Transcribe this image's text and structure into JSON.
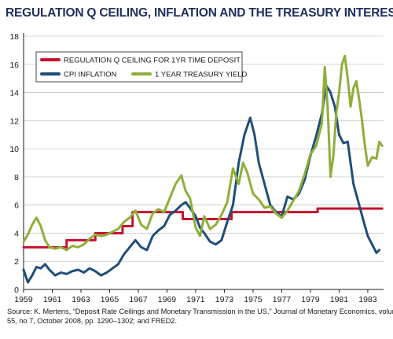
{
  "chart_data": {
    "type": "line",
    "title": "REGULATION Q CEILING, INFLATION AND THE TREASURY INTEREST RATE",
    "xlabel": "",
    "ylabel": "",
    "xlim": [
      1959,
      1984.1
    ],
    "ylim": [
      0,
      18
    ],
    "x_ticks": [
      1959,
      1961,
      1963,
      1965,
      1967,
      1969,
      1971,
      1973,
      1975,
      1977,
      1979,
      1981,
      1983
    ],
    "y_ticks": [
      0,
      2,
      4,
      6,
      8,
      10,
      12,
      14,
      16,
      18
    ],
    "grid": "horizontal",
    "legend_position": "top-left",
    "source": [
      "Source: K. Mertens, “Deposit Rate Ceilings and Monetary Transmission in the US,” Journal of Monetary Economics, volume",
      "55, no 7, October 2008, pp. 1290–1302; and FRED2."
    ],
    "series": [
      {
        "name": "REGULATION Q CEILING FOR 1YR TIME DEPOSIT",
        "color": "#c8102e",
        "step": true,
        "x": [
          1959,
          1962,
          1964,
          1965.9,
          1966.6,
          1970.1,
          1973.5,
          1979.5,
          1984
        ],
        "y": [
          3.0,
          3.5,
          4.0,
          4.5,
          5.5,
          5.0,
          5.5,
          5.75,
          5.75
        ]
      },
      {
        "name": "CPI INFLATION",
        "color": "#1f4e79",
        "step": false,
        "x": [
          1959.0,
          1959.3,
          1959.6,
          1959.9,
          1960.2,
          1960.5,
          1960.8,
          1961.2,
          1961.6,
          1962.0,
          1962.4,
          1962.8,
          1963.2,
          1963.6,
          1964.0,
          1964.4,
          1964.8,
          1965.2,
          1965.6,
          1966.0,
          1966.4,
          1966.8,
          1967.2,
          1967.6,
          1968.0,
          1968.4,
          1968.8,
          1969.2,
          1969.6,
          1970.0,
          1970.3,
          1970.6,
          1971.0,
          1971.3,
          1971.6,
          1972.0,
          1972.4,
          1972.8,
          1973.2,
          1973.6,
          1974.0,
          1974.4,
          1974.8,
          1975.1,
          1975.4,
          1975.8,
          1976.2,
          1976.6,
          1977.0,
          1977.4,
          1977.8,
          1978.2,
          1978.6,
          1979.0,
          1979.4,
          1979.8,
          1980.1,
          1980.4,
          1980.7,
          1981.0,
          1981.3,
          1981.6,
          1982.0,
          1982.4,
          1982.8,
          1983.0,
          1983.3,
          1983.6,
          1983.8
        ],
        "y": [
          1.4,
          0.5,
          1.0,
          1.6,
          1.5,
          1.8,
          1.4,
          1.0,
          1.2,
          1.1,
          1.3,
          1.4,
          1.2,
          1.5,
          1.3,
          1.0,
          1.2,
          1.5,
          1.8,
          2.5,
          3.0,
          3.5,
          3.0,
          2.8,
          3.8,
          4.2,
          4.5,
          5.3,
          5.6,
          6.0,
          6.2,
          5.8,
          5.2,
          4.4,
          4.0,
          3.4,
          3.2,
          3.5,
          4.8,
          6.0,
          9.0,
          11.0,
          12.2,
          11.0,
          9.0,
          7.5,
          6.0,
          5.5,
          5.2,
          6.6,
          6.4,
          6.8,
          7.8,
          9.5,
          10.9,
          12.5,
          14.5,
          14.0,
          13.0,
          11.0,
          10.4,
          10.5,
          7.5,
          6.0,
          4.5,
          3.8,
          3.2,
          2.6,
          2.8
        ]
      },
      {
        "name": "1 YEAR TREASURY YIELD",
        "color": "#8fae3a",
        "step": false,
        "x": [
          1959.0,
          1959.3,
          1959.6,
          1959.9,
          1960.2,
          1960.5,
          1960.8,
          1961.2,
          1961.6,
          1962.0,
          1962.4,
          1962.8,
          1963.2,
          1963.6,
          1964.0,
          1964.4,
          1964.8,
          1965.2,
          1965.6,
          1966.0,
          1966.4,
          1966.8,
          1967.2,
          1967.6,
          1968.0,
          1968.4,
          1968.8,
          1969.2,
          1969.6,
          1970.0,
          1970.3,
          1970.6,
          1971.0,
          1971.3,
          1971.6,
          1972.0,
          1972.4,
          1972.8,
          1973.2,
          1973.6,
          1974.0,
          1974.3,
          1974.6,
          1975.0,
          1975.4,
          1975.8,
          1976.2,
          1976.6,
          1977.0,
          1977.4,
          1977.8,
          1978.2,
          1978.6,
          1979.0,
          1979.4,
          1979.8,
          1980.0,
          1980.2,
          1980.4,
          1980.6,
          1980.8,
          1981.0,
          1981.2,
          1981.4,
          1981.6,
          1981.8,
          1982.0,
          1982.2,
          1982.4,
          1982.6,
          1982.8,
          1983.0,
          1983.3,
          1983.6,
          1983.8,
          1984.0
        ],
        "y": [
          3.4,
          3.9,
          4.6,
          5.1,
          4.5,
          3.5,
          3.0,
          2.9,
          3.0,
          2.8,
          3.1,
          3.0,
          3.2,
          3.6,
          3.9,
          3.8,
          3.9,
          4.1,
          4.3,
          4.8,
          5.1,
          5.6,
          4.6,
          4.3,
          5.4,
          5.7,
          5.5,
          6.5,
          7.5,
          8.1,
          7.0,
          6.5,
          4.4,
          3.8,
          5.2,
          4.3,
          4.6,
          5.3,
          6.2,
          8.6,
          7.5,
          9.0,
          8.3,
          6.8,
          6.4,
          5.8,
          5.9,
          5.4,
          5.1,
          5.6,
          6.3,
          7.0,
          8.2,
          9.6,
          10.2,
          11.8,
          15.8,
          13.0,
          8.0,
          9.5,
          12.5,
          14.0,
          16.0,
          16.6,
          15.0,
          13.0,
          14.3,
          14.8,
          13.5,
          12.0,
          10.2,
          8.8,
          9.4,
          9.3,
          10.5,
          10.2
        ]
      }
    ]
  }
}
